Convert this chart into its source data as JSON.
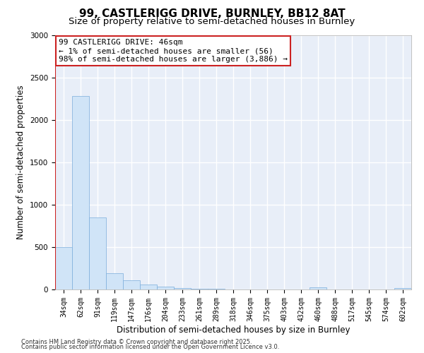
{
  "title_line1": "99, CASTLERIGG DRIVE, BURNLEY, BB12 8AT",
  "title_line2": "Size of property relative to semi-detached houses in Burnley",
  "xlabel": "Distribution of semi-detached houses by size in Burnley",
  "ylabel": "Number of semi-detached properties",
  "footnote_line1": "Contains HM Land Registry data © Crown copyright and database right 2025.",
  "footnote_line2": "Contains public sector information licensed under the Open Government Licence v3.0.",
  "annotation_line1": "99 CASTLERIGG DRIVE: 46sqm",
  "annotation_line2": "← 1% of semi-detached houses are smaller (56)",
  "annotation_line3": "98% of semi-detached houses are larger (3,886) →",
  "categories": [
    "34sqm",
    "62sqm",
    "91sqm",
    "119sqm",
    "147sqm",
    "176sqm",
    "204sqm",
    "233sqm",
    "261sqm",
    "289sqm",
    "318sqm",
    "346sqm",
    "375sqm",
    "403sqm",
    "432sqm",
    "460sqm",
    "488sqm",
    "517sqm",
    "545sqm",
    "574sqm",
    "602sqm"
  ],
  "values": [
    500,
    2280,
    850,
    195,
    105,
    55,
    30,
    15,
    8,
    5,
    2,
    0,
    0,
    0,
    0,
    25,
    0,
    0,
    0,
    0,
    15
  ],
  "bar_color_fill": "#d0e4f7",
  "bar_color_edge": "#7aaddb",
  "red_line_color": "#cc2222",
  "annotation_box_facecolor": "#ffffff",
  "annotation_box_edgecolor": "#cc2222",
  "ylim": [
    0,
    3000
  ],
  "yticks": [
    0,
    500,
    1000,
    1500,
    2000,
    2500,
    3000
  ],
  "background_color": "#e8eef8",
  "grid_color": "#ffffff",
  "plot_bg_color": "#e8eef8",
  "title_fontsize": 11,
  "subtitle_fontsize": 9.5,
  "axis_label_fontsize": 8.5,
  "tick_fontsize": 7,
  "annotation_fontsize": 8,
  "footnote_fontsize": 6
}
